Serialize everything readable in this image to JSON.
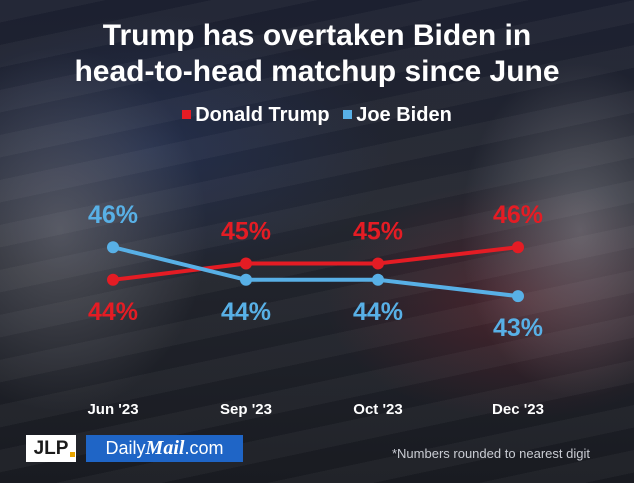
{
  "chart_data": {
    "type": "line",
    "title_lines": [
      "Trump has overtaken Biden in",
      "head-to-head matchup since June"
    ],
    "categories": [
      "Jun '23",
      "Sep '23",
      "Oct '23",
      "Dec '23"
    ],
    "series": [
      {
        "name": "Donald Trump",
        "color": "#e41c24",
        "values": [
          44,
          45,
          45,
          46
        ],
        "labels": [
          "44%",
          "45%",
          "45%",
          "46%"
        ],
        "label_side": [
          "below",
          "above",
          "above",
          "above"
        ]
      },
      {
        "name": "Joe Biden",
        "color": "#58b0e6",
        "values": [
          46,
          44,
          44,
          43
        ],
        "labels": [
          "46%",
          "44%",
          "44%",
          "43%"
        ],
        "label_side": [
          "above",
          "below",
          "below",
          "below"
        ]
      }
    ],
    "ylim": [
      40,
      50
    ],
    "grid": false,
    "legend_position": "top-center"
  },
  "logos": {
    "jlp": "JLP",
    "dm_prefix": "Daily",
    "dm_bold": "Mail",
    "dm_suffix": ".com"
  },
  "note": "*Numbers rounded to nearest digit"
}
